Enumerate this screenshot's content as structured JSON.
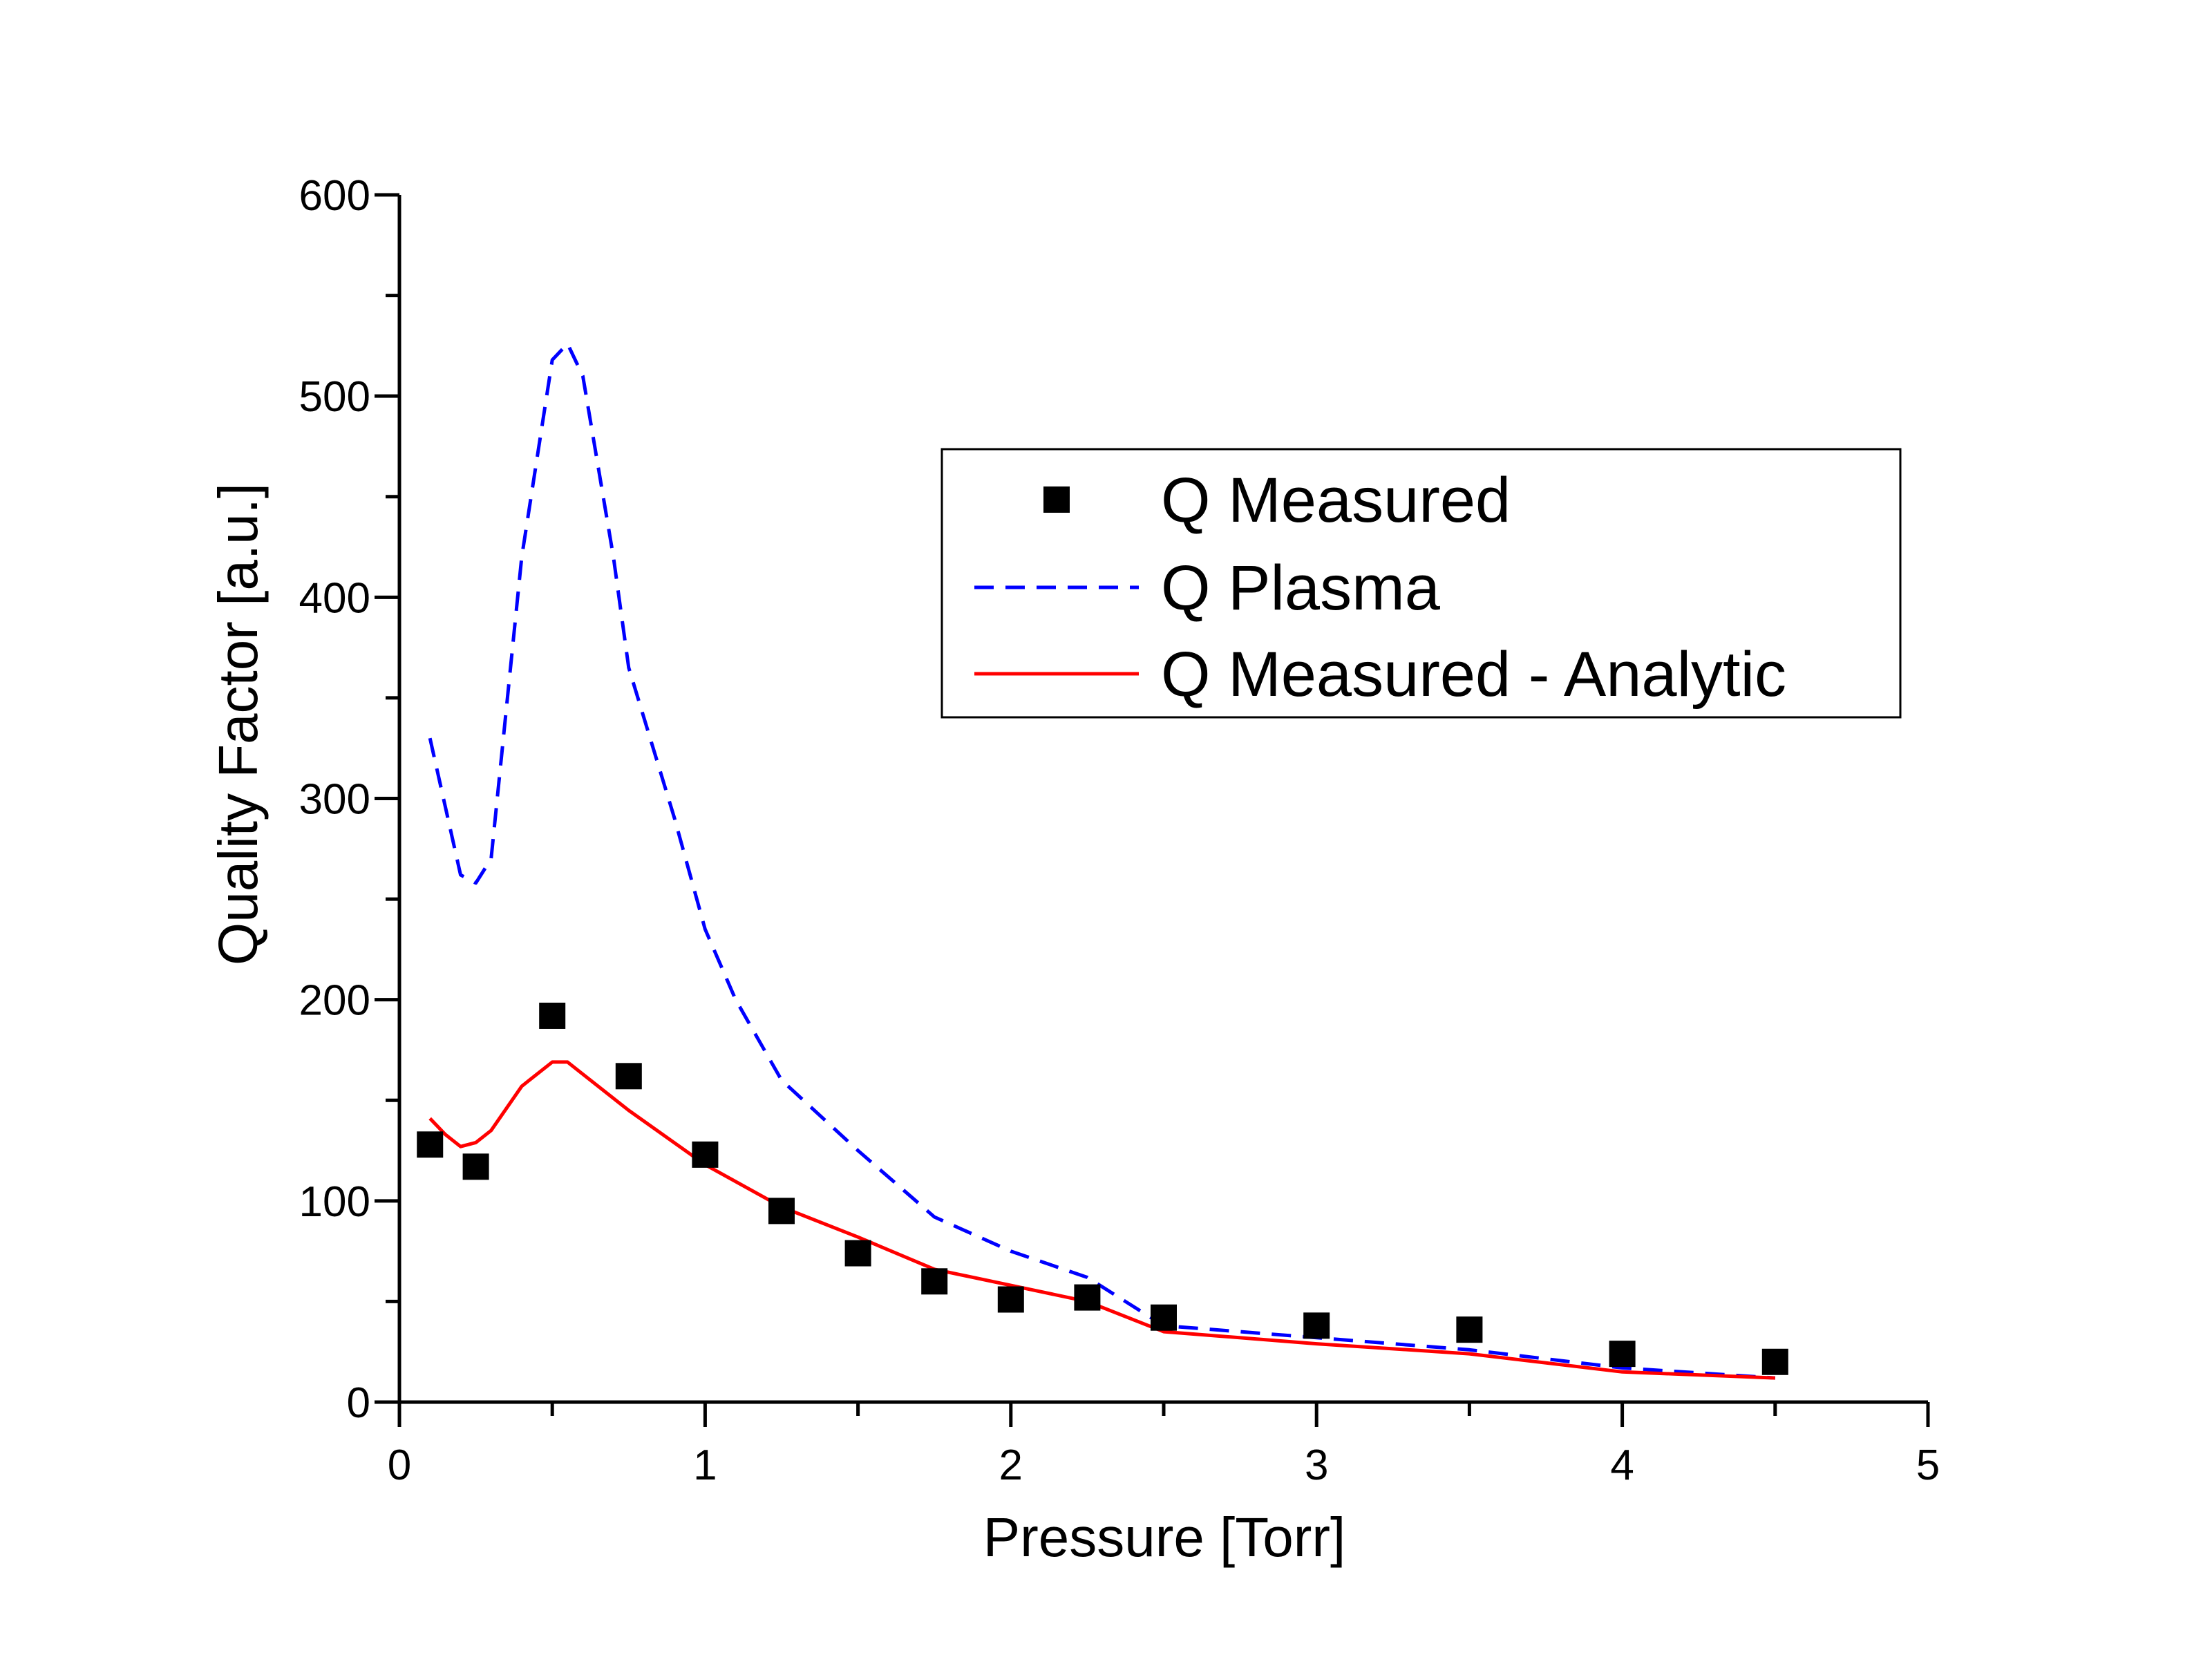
{
  "chart_data": {
    "type": "line",
    "title": "",
    "xlabel": "Pressure [Torr]",
    "ylabel": "Quality Factor [a.u.]",
    "xlim": [
      0,
      5
    ],
    "ylim": [
      0,
      600
    ],
    "xticks": [
      0,
      1,
      2,
      3,
      4,
      5
    ],
    "xtick_labels": [
      "0",
      "1",
      "2",
      "3",
      "4",
      "5"
    ],
    "yticks": [
      0,
      100,
      200,
      300,
      400,
      500,
      600
    ],
    "ytick_labels": [
      "0",
      "100",
      "200",
      "300",
      "400",
      "500",
      "600"
    ],
    "grid": false,
    "legend_position": "top-right",
    "series": [
      {
        "name": "Q Measured",
        "kind": "scatter",
        "color": "#000000",
        "x": [
          0.1,
          0.25,
          0.5,
          0.75,
          1.0,
          1.25,
          1.5,
          1.75,
          2.0,
          2.25,
          2.5,
          3.0,
          3.5,
          4.0,
          4.5
        ],
        "y": [
          128,
          117,
          192,
          162,
          123,
          95,
          74,
          60,
          51,
          52,
          42,
          38,
          36,
          24,
          20
        ]
      },
      {
        "name": "Q Plasma",
        "kind": "line",
        "style": "dashed",
        "color": "#0000ff",
        "x": [
          0.1,
          0.2,
          0.25,
          0.3,
          0.4,
          0.5,
          0.55,
          0.6,
          0.7,
          0.75,
          0.9,
          1.0,
          1.1,
          1.25,
          1.5,
          1.75,
          2.0,
          2.25,
          2.5,
          3.0,
          3.5,
          4.0,
          4.5
        ],
        "y": [
          330,
          262,
          258,
          270,
          420,
          518,
          526,
          510,
          420,
          365,
          290,
          235,
          200,
          160,
          125,
          92,
          75,
          62,
          38,
          32,
          26,
          17,
          12
        ]
      },
      {
        "name": "Q Measured - Analytic",
        "kind": "line",
        "style": "solid",
        "color": "#ff0000",
        "x": [
          0.1,
          0.15,
          0.2,
          0.25,
          0.3,
          0.4,
          0.5,
          0.55,
          0.6,
          0.75,
          1.0,
          1.25,
          1.5,
          1.75,
          2.0,
          2.25,
          2.5,
          3.0,
          3.5,
          4.0,
          4.5
        ],
        "y": [
          141,
          133,
          127,
          129,
          135,
          157,
          169,
          169,
          163,
          145,
          118,
          97,
          82,
          66,
          58,
          50,
          35,
          29,
          24,
          15,
          12
        ]
      }
    ]
  }
}
